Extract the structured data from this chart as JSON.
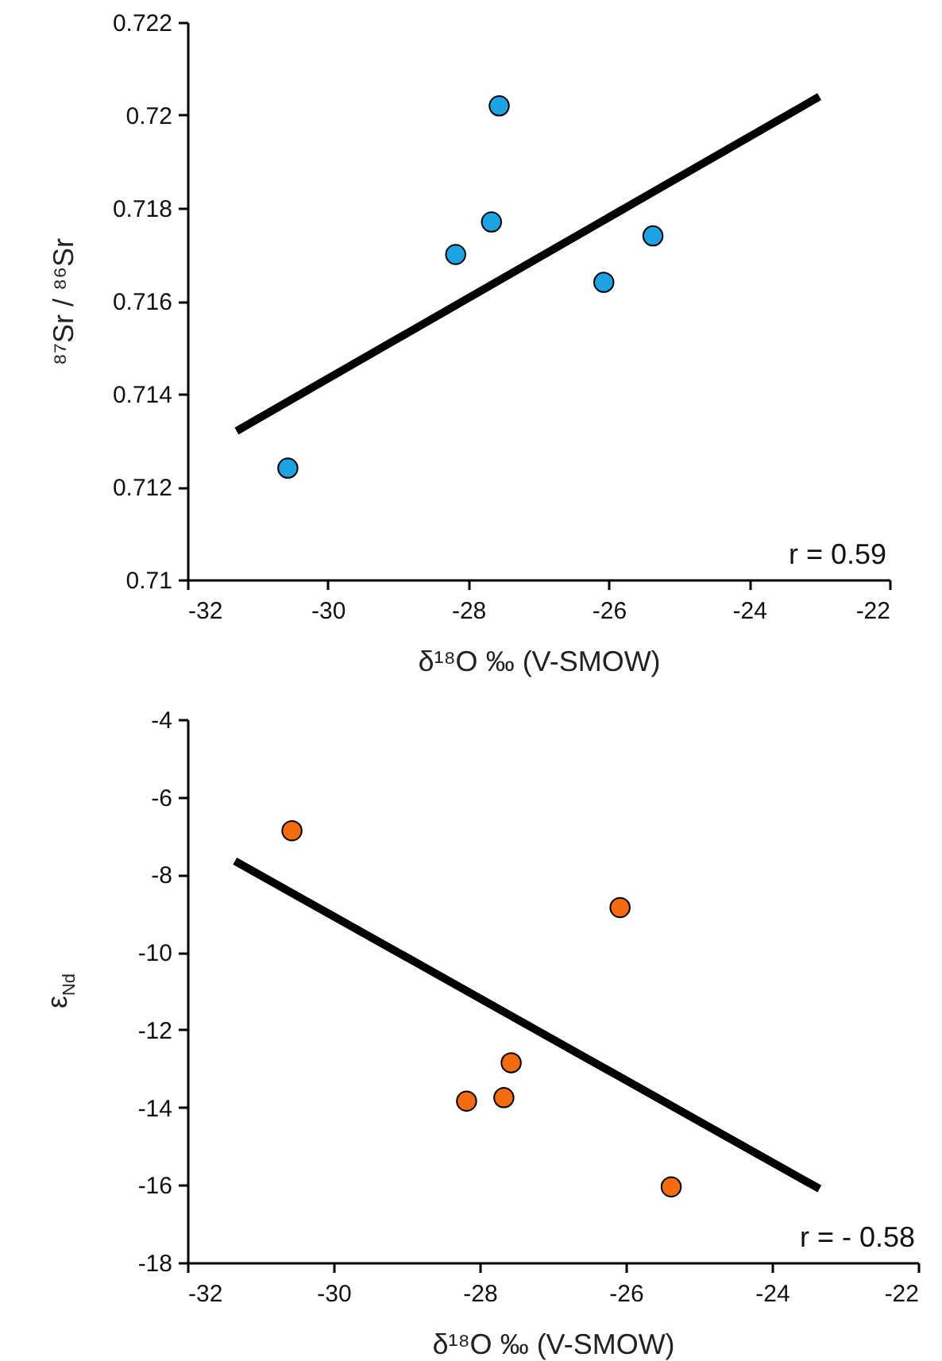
{
  "chart_data": [
    {
      "type": "scatter",
      "xlabel": "δ¹⁸O ‰ (V-SMOW)",
      "ylabel": "⁸⁷Sr / ⁸⁶Sr",
      "xlim": [
        -32,
        -22
      ],
      "xticks": [
        -32,
        -30,
        -28,
        -26,
        -24,
        -22
      ],
      "ylim": [
        0.71,
        0.722
      ],
      "yticks": [
        0.71,
        0.712,
        0.714,
        0.716,
        0.718,
        0.72,
        0.722
      ],
      "grid": false,
      "annotations": [
        "r = 0.59"
      ],
      "x": [
        -30.57,
        -28.18,
        -27.67,
        -27.56,
        -26.07,
        -25.37
      ],
      "series": [
        {
          "color": "#1ba3e3",
          "marker": "circle",
          "values": [
            0.7124,
            0.717,
            0.7177,
            0.7202,
            0.7164,
            0.7174
          ]
        },
        {
          "type": "line",
          "color": "#000000",
          "marker": "none",
          "line_style": "solid",
          "x": [
            -31.3,
            -23.0
          ],
          "values": [
            0.7132,
            0.7204
          ]
        }
      ]
    },
    {
      "type": "scatter",
      "xlabel": "δ¹⁸O ‰ (V-SMOW)",
      "ylabel": "ε$_{Nd}$",
      "xlim": [
        -32,
        -22
      ],
      "xticks": [
        -32,
        -30,
        -28,
        -26,
        -24,
        -22
      ],
      "ylim": [
        -18,
        -4
      ],
      "yticks": [
        -18,
        -16,
        -14,
        -12,
        -10,
        -8,
        -6,
        -4
      ],
      "grid": false,
      "annotations": [
        "r = - 0.58"
      ],
      "x": [
        -30.57,
        -26.08,
        -27.57,
        -28.18,
        -27.67,
        -25.38
      ],
      "series": [
        {
          "color": "#f56b0f",
          "marker": "circle",
          "values": [
            -6.87,
            -8.85,
            -12.85,
            -13.84,
            -13.75,
            -16.05
          ]
        },
        {
          "type": "line",
          "color": "#000000",
          "marker": "none",
          "line_style": "solid",
          "x": [
            -31.35,
            -23.35
          ],
          "values": [
            -7.65,
            -16.1
          ]
        }
      ]
    }
  ]
}
